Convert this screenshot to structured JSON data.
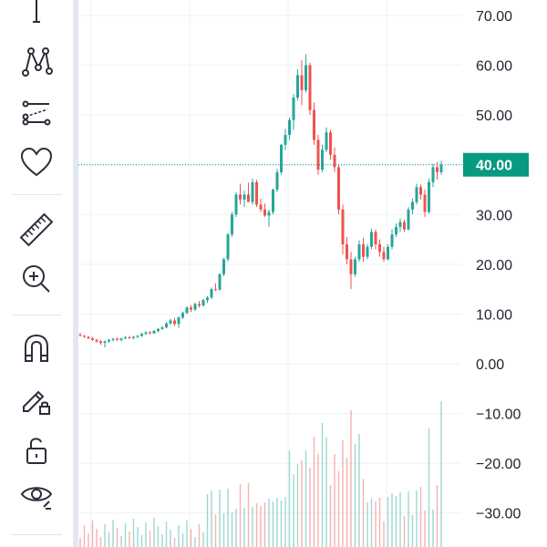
{
  "toolbar": {
    "tools": [
      {
        "name": "text-tool",
        "icon": "text-icon"
      },
      {
        "name": "pattern-tool",
        "icon": "pattern-icon"
      },
      {
        "name": "forecast-tool",
        "icon": "forecast-icon"
      },
      {
        "name": "favorites-tool",
        "icon": "heart-icon"
      },
      {
        "name": "measure-tool",
        "icon": "ruler-icon"
      },
      {
        "name": "zoom-in-tool",
        "icon": "zoom-in-icon"
      },
      {
        "name": "magnet-tool",
        "icon": "magnet-icon"
      },
      {
        "name": "lock-drawings-tool",
        "icon": "pencil-lock-icon"
      },
      {
        "name": "lock-all-tool",
        "icon": "unlock-icon"
      },
      {
        "name": "hide-drawings-tool",
        "icon": "eye-icon"
      }
    ]
  },
  "price_axis": {
    "labels": [
      "70.00",
      "60.00",
      "50.00",
      "40.00",
      "30.00",
      "20.00",
      "10.00",
      "0.00",
      "−10.00",
      "−20.00",
      "−30.00"
    ],
    "current_price_label": "40.00"
  },
  "colors": {
    "up": "#26a69a",
    "down": "#ef5350",
    "current_price": "#089981",
    "grid": "#eef0f3"
  },
  "chart_data": {
    "type": "candlestick",
    "ylim": [
      -35,
      73
    ],
    "current_price": 40,
    "candles": [
      [
        5.8,
        6.2,
        5.5,
        5.6
      ],
      [
        5.6,
        5.8,
        5.2,
        5.4
      ],
      [
        5.4,
        5.6,
        5.0,
        5.1
      ],
      [
        5.1,
        5.4,
        4.6,
        4.8
      ],
      [
        4.8,
        5.0,
        4.2,
        4.5
      ],
      [
        4.5,
        4.8,
        3.8,
        4.2
      ],
      [
        4.2,
        4.7,
        3.3,
        4.5
      ],
      [
        4.5,
        5.0,
        4.2,
        4.8
      ],
      [
        4.8,
        5.2,
        4.5,
        5.0
      ],
      [
        5.0,
        5.3,
        4.6,
        4.8
      ],
      [
        4.8,
        5.2,
        4.5,
        5.1
      ],
      [
        5.1,
        5.6,
        4.9,
        5.3
      ],
      [
        5.3,
        5.6,
        5.0,
        5.2
      ],
      [
        5.2,
        5.6,
        4.9,
        5.4
      ],
      [
        5.4,
        5.8,
        5.1,
        5.6
      ],
      [
        5.6,
        6.2,
        5.4,
        6.0
      ],
      [
        6.0,
        6.6,
        5.8,
        6.3
      ],
      [
        6.3,
        6.6,
        5.9,
        6.1
      ],
      [
        6.1,
        6.8,
        6.0,
        6.6
      ],
      [
        6.6,
        7.2,
        6.3,
        7.0
      ],
      [
        7.0,
        7.6,
        6.8,
        7.3
      ],
      [
        7.3,
        8.4,
        7.1,
        8.1
      ],
      [
        8.1,
        9.0,
        7.8,
        8.7
      ],
      [
        8.7,
        9.2,
        7.6,
        8.0
      ],
      [
        8.0,
        9.5,
        7.2,
        9.3
      ],
      [
        9.3,
        10.5,
        9.0,
        10.2
      ],
      [
        10.2,
        11.6,
        10.0,
        11.3
      ],
      [
        11.3,
        11.8,
        10.4,
        10.9
      ],
      [
        10.9,
        12.3,
        10.6,
        12.0
      ],
      [
        12.0,
        12.6,
        11.3,
        11.7
      ],
      [
        11.7,
        13.0,
        11.5,
        12.8
      ],
      [
        12.8,
        13.6,
        12.2,
        13.3
      ],
      [
        13.3,
        15.3,
        13.0,
        15.0
      ],
      [
        15.0,
        16.2,
        14.6,
        14.9
      ],
      [
        14.9,
        18.2,
        14.7,
        18.0
      ],
      [
        18.0,
        21.3,
        17.6,
        21.0
      ],
      [
        21.0,
        26.3,
        20.6,
        26.0
      ],
      [
        26.0,
        30.5,
        25.5,
        30.0
      ],
      [
        30.0,
        34.5,
        29.5,
        34.0
      ],
      [
        34.0,
        36.2,
        32.0,
        33.0
      ],
      [
        33.0,
        34.8,
        31.5,
        34.0
      ],
      [
        34.0,
        36.4,
        33.2,
        32.5
      ],
      [
        32.5,
        37.2,
        32.0,
        36.5
      ],
      [
        36.5,
        37.0,
        31.5,
        32.0
      ],
      [
        32.0,
        33.2,
        30.5,
        31.0
      ],
      [
        31.0,
        32.2,
        29.5,
        29.8
      ],
      [
        29.8,
        31.0,
        27.5,
        30.5
      ],
      [
        30.5,
        35.2,
        30.0,
        35.0
      ],
      [
        35.0,
        39.2,
        34.5,
        38.5
      ],
      [
        38.5,
        44.2,
        38.0,
        44.0
      ],
      [
        44.0,
        47.2,
        43.0,
        46.0
      ],
      [
        46.0,
        49.5,
        45.0,
        49.0
      ],
      [
        49.0,
        54.2,
        47.0,
        53.5
      ],
      [
        53.5,
        59.2,
        53.0,
        58.0
      ],
      [
        58.0,
        61.0,
        52.0,
        55.0
      ],
      [
        55.0,
        62.2,
        54.5,
        60.0
      ],
      [
        60.0,
        60.5,
        50.0,
        51.0
      ],
      [
        51.0,
        52.5,
        44.0,
        45.0
      ],
      [
        45.0,
        46.0,
        38.0,
        39.0
      ],
      [
        39.0,
        44.0,
        38.5,
        43.0
      ],
      [
        43.0,
        47.5,
        42.5,
        46.5
      ],
      [
        46.5,
        47.0,
        41.0,
        42.0
      ],
      [
        42.0,
        43.5,
        38.5,
        39.5
      ],
      [
        39.5,
        40.0,
        30.0,
        31.0
      ],
      [
        31.0,
        32.0,
        22.0,
        24.0
      ],
      [
        24.0,
        25.5,
        20.0,
        21.0
      ],
      [
        21.0,
        22.5,
        15.0,
        18.0
      ],
      [
        18.0,
        21.5,
        17.5,
        21.0
      ],
      [
        21.0,
        24.8,
        20.5,
        24.0
      ],
      [
        24.0,
        25.3,
        20.5,
        21.5
      ],
      [
        21.5,
        24.0,
        21.0,
        23.5
      ],
      [
        23.5,
        27.2,
        23.0,
        26.5
      ],
      [
        26.5,
        27.0,
        23.0,
        24.0
      ],
      [
        24.0,
        25.0,
        21.5,
        22.5
      ],
      [
        22.5,
        23.5,
        20.5,
        21.0
      ],
      [
        21.0,
        24.0,
        20.8,
        23.5
      ],
      [
        23.5,
        27.0,
        23.0,
        26.0
      ],
      [
        26.0,
        28.2,
        25.5,
        27.5
      ],
      [
        27.5,
        29.2,
        26.5,
        28.5
      ],
      [
        28.5,
        29.0,
        26.5,
        27.0
      ],
      [
        27.0,
        31.5,
        26.8,
        31.0
      ],
      [
        31.0,
        33.2,
        30.0,
        32.5
      ],
      [
        32.5,
        36.2,
        32.0,
        35.5
      ],
      [
        35.5,
        36.0,
        33.0,
        34.0
      ],
      [
        34.0,
        35.0,
        29.5,
        30.5
      ],
      [
        30.5,
        37.2,
        30.2,
        36.5
      ],
      [
        36.5,
        40.2,
        35.5,
        39.5
      ],
      [
        39.5,
        40.5,
        37.0,
        38.5
      ],
      [
        38.5,
        40.8,
        38.0,
        40.0
      ]
    ],
    "volume_axis_equivalent": "volume histogram bars in lower pane (no numeric labels shown)"
  }
}
